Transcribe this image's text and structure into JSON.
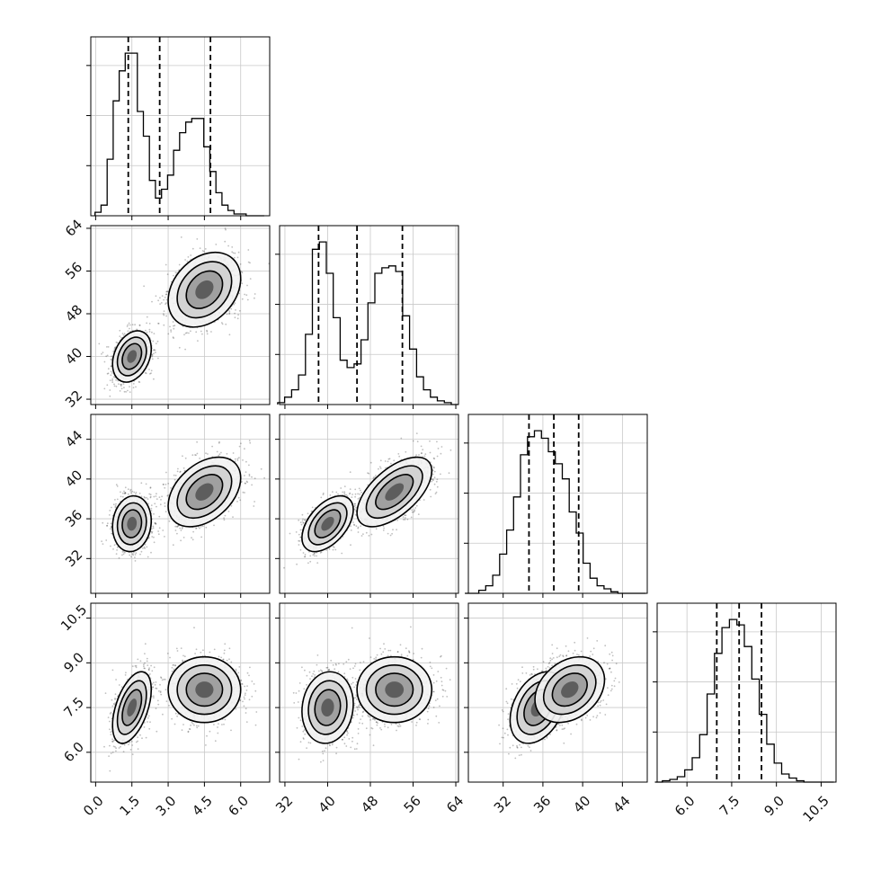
{
  "chart_data": {
    "type": "corner",
    "title": "",
    "grid": true,
    "parameters": [
      {
        "range": [
          -0.2,
          7.2
        ],
        "ticks": [
          0.0,
          1.5,
          3.0,
          4.5,
          6.0
        ],
        "tick_labels": [
          "0.0",
          "1.5",
          "3.0",
          "4.5",
          "6.0"
        ]
      },
      {
        "range": [
          31,
          64.5
        ],
        "ticks": [
          32,
          40,
          48,
          56,
          64
        ],
        "tick_labels": [
          "32",
          "40",
          "48",
          "56",
          "64"
        ]
      },
      {
        "range": [
          28.5,
          46.5
        ],
        "ticks": [
          32,
          36,
          40,
          44
        ],
        "tick_labels": [
          "32",
          "36",
          "40",
          "44"
        ]
      },
      {
        "range": [
          5.0,
          11.0
        ],
        "ticks": [
          6.0,
          7.5,
          9.0,
          10.5
        ],
        "tick_labels": [
          "6.0",
          "7.5",
          "9.0",
          "10.5"
        ]
      }
    ],
    "quantiles": [
      [
        1.35,
        2.65,
        4.75
      ],
      [
        38.3,
        45.5,
        54.0
      ],
      [
        34.6,
        37.1,
        39.6
      ],
      [
        7.0,
        7.75,
        8.5
      ]
    ],
    "histograms": [
      {
        "x": [
          0.1,
          0.35,
          0.6,
          0.85,
          1.1,
          1.35,
          1.6,
          1.85,
          2.1,
          2.35,
          2.6,
          2.85,
          3.1,
          3.35,
          3.6,
          3.85,
          4.1,
          4.35,
          4.6,
          4.85,
          5.1,
          5.35,
          5.6,
          5.85,
          6.1,
          6.35,
          6.6,
          6.85
        ],
        "counts": [
          2,
          6,
          32,
          65,
          82,
          92,
          92,
          59,
          45,
          20,
          10,
          15,
          23,
          37,
          47,
          53,
          55,
          55,
          39,
          25,
          13,
          6,
          3,
          1,
          1,
          0,
          0,
          0
        ]
      },
      {
        "x": [
          31.3,
          32.6,
          33.9,
          35.2,
          36.5,
          37.8,
          39.1,
          40.4,
          41.7,
          43.0,
          44.3,
          45.6,
          46.9,
          48.2,
          49.5,
          50.8,
          52.1,
          53.4,
          54.7,
          56.0,
          57.3,
          58.6,
          59.9,
          61.2,
          62.5,
          63.8
        ],
        "counts": [
          1,
          4,
          8,
          16,
          38,
          84,
          88,
          71,
          47,
          24,
          20,
          22,
          35,
          55,
          71,
          74,
          75,
          72,
          48,
          30,
          15,
          8,
          4,
          2,
          1,
          0
        ]
      },
      {
        "x": [
          28.5,
          29.2,
          29.9,
          30.6,
          31.3,
          32.0,
          32.7,
          33.4,
          34.1,
          34.8,
          35.5,
          36.2,
          36.9,
          37.6,
          38.3,
          39.0,
          39.7,
          40.4,
          41.1,
          41.8,
          42.5,
          43.2,
          43.9,
          44.6,
          45.3,
          46.0
        ],
        "counts": [
          0,
          0,
          2,
          5,
          12,
          26,
          42,
          64,
          92,
          104,
          108,
          103,
          94,
          86,
          76,
          54,
          40,
          20,
          10,
          5,
          3,
          1,
          0,
          0,
          0,
          0
        ]
      },
      {
        "x": [
          5.05,
          5.3,
          5.55,
          5.8,
          6.05,
          6.3,
          6.55,
          6.8,
          7.05,
          7.3,
          7.55,
          7.8,
          8.05,
          8.3,
          8.55,
          8.8,
          9.05,
          9.3,
          9.55,
          9.8,
          10.05,
          10.3,
          10.55,
          10.8
        ],
        "counts": [
          0,
          1,
          2,
          4,
          9,
          18,
          35,
          65,
          95,
          114,
          120,
          116,
          100,
          76,
          50,
          28,
          14,
          6,
          3,
          1,
          0,
          0,
          0,
          0
        ]
      }
    ],
    "modes": [
      {
        "weight": 0.45,
        "mean": [
          1.5,
          40.0,
          35.5,
          7.5
        ],
        "sd": [
          0.4,
          2.4,
          1.4,
          0.6
        ]
      },
      {
        "weight": 0.55,
        "mean": [
          4.5,
          52.5,
          38.7,
          8.1
        ],
        "sd": [
          0.75,
          3.5,
          1.75,
          0.55
        ]
      }
    ],
    "correlations": {
      "0-1": [
        0.3,
        0.3
      ],
      "0-2": [
        0.1,
        0.4
      ],
      "0-3": [
        0.5,
        0.0
      ],
      "1-2": [
        0.5,
        0.6
      ],
      "1-3": [
        0.1,
        0.0
      ],
      "2-3": [
        0.35,
        0.3
      ]
    }
  }
}
